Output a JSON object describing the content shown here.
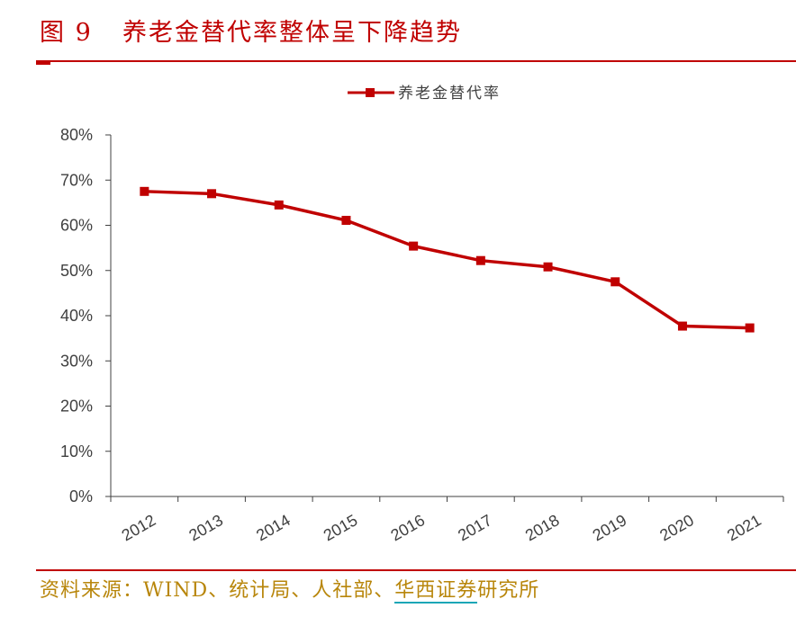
{
  "header": {
    "figure_number": "图 9",
    "title": "养老金替代率整体呈下降趋势"
  },
  "footer": {
    "source_prefix": "资料来源：WIND、统计局、人社部、",
    "source_brand": "华西证券",
    "source_suffix": "研究所"
  },
  "chart_data": {
    "type": "line",
    "categories": [
      "2012",
      "2013",
      "2014",
      "2015",
      "2016",
      "2017",
      "2018",
      "2019",
      "2020",
      "2021"
    ],
    "series": [
      {
        "name": "养老金替代率",
        "values": [
          67.5,
          67.0,
          64.5,
          61.1,
          55.4,
          52.2,
          50.8,
          47.5,
          37.7,
          37.3
        ],
        "color": "#c00000"
      }
    ],
    "y_ticks": [
      "0%",
      "10%",
      "20%",
      "30%",
      "40%",
      "50%",
      "60%",
      "70%",
      "80%"
    ],
    "ylim": [
      0,
      80
    ],
    "legend_position": "top-center",
    "grid": false
  }
}
